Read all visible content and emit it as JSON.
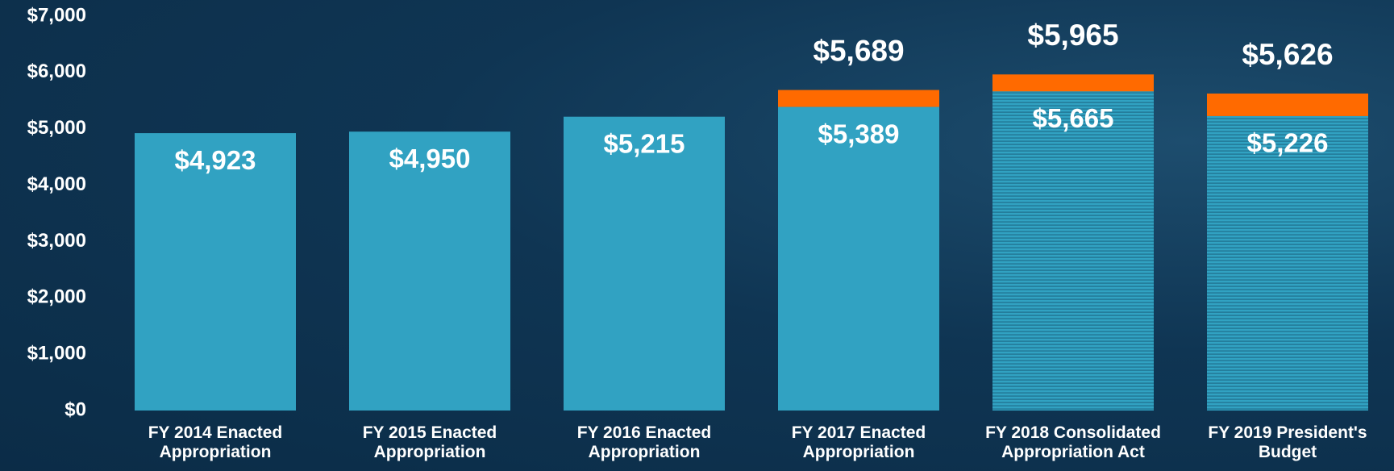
{
  "chart_data": {
    "type": "stacked_bar",
    "categories": [
      "FY 2014 Enacted\nAppropriation",
      "FY 2015 Enacted\nAppropriation",
      "FY 2016 Enacted\nAppropriation",
      "FY 2017 Enacted\nAppropriation",
      "FY 2018 Consolidated\nAppropriation Act",
      "FY 2019 President's\nBudget"
    ],
    "series": [
      {
        "color": "#31a2c2",
        "hatched": [
          false,
          false,
          false,
          false,
          true,
          true
        ],
        "values": [
          4923,
          4950,
          5215,
          5389,
          5665,
          5226
        ],
        "value_labels": [
          "$4,923",
          "$4,950",
          "$5,215",
          "$5,389",
          "$5,665",
          "$5,226"
        ]
      },
      {
        "color": "#ff6a00",
        "values": [
          null,
          null,
          null,
          300,
          300,
          400
        ]
      }
    ],
    "totals": [
      null,
      null,
      null,
      5689,
      5965,
      5626
    ],
    "total_labels": [
      null,
      null,
      null,
      "$5,689",
      "$5,965",
      "$5,626"
    ],
    "ylim": [
      0,
      7000
    ],
    "yticks": [
      {
        "value": 0,
        "label": "$0"
      },
      {
        "value": 1000,
        "label": "$1,000"
      },
      {
        "value": 2000,
        "label": "$2,000"
      },
      {
        "value": 3000,
        "label": "$3,000"
      },
      {
        "value": 4000,
        "label": "$4,000"
      },
      {
        "value": 5000,
        "label": "$5,000"
      },
      {
        "value": 6000,
        "label": "$6,000"
      },
      {
        "value": 7000,
        "label": "$7,000"
      }
    ],
    "grid": false
  }
}
